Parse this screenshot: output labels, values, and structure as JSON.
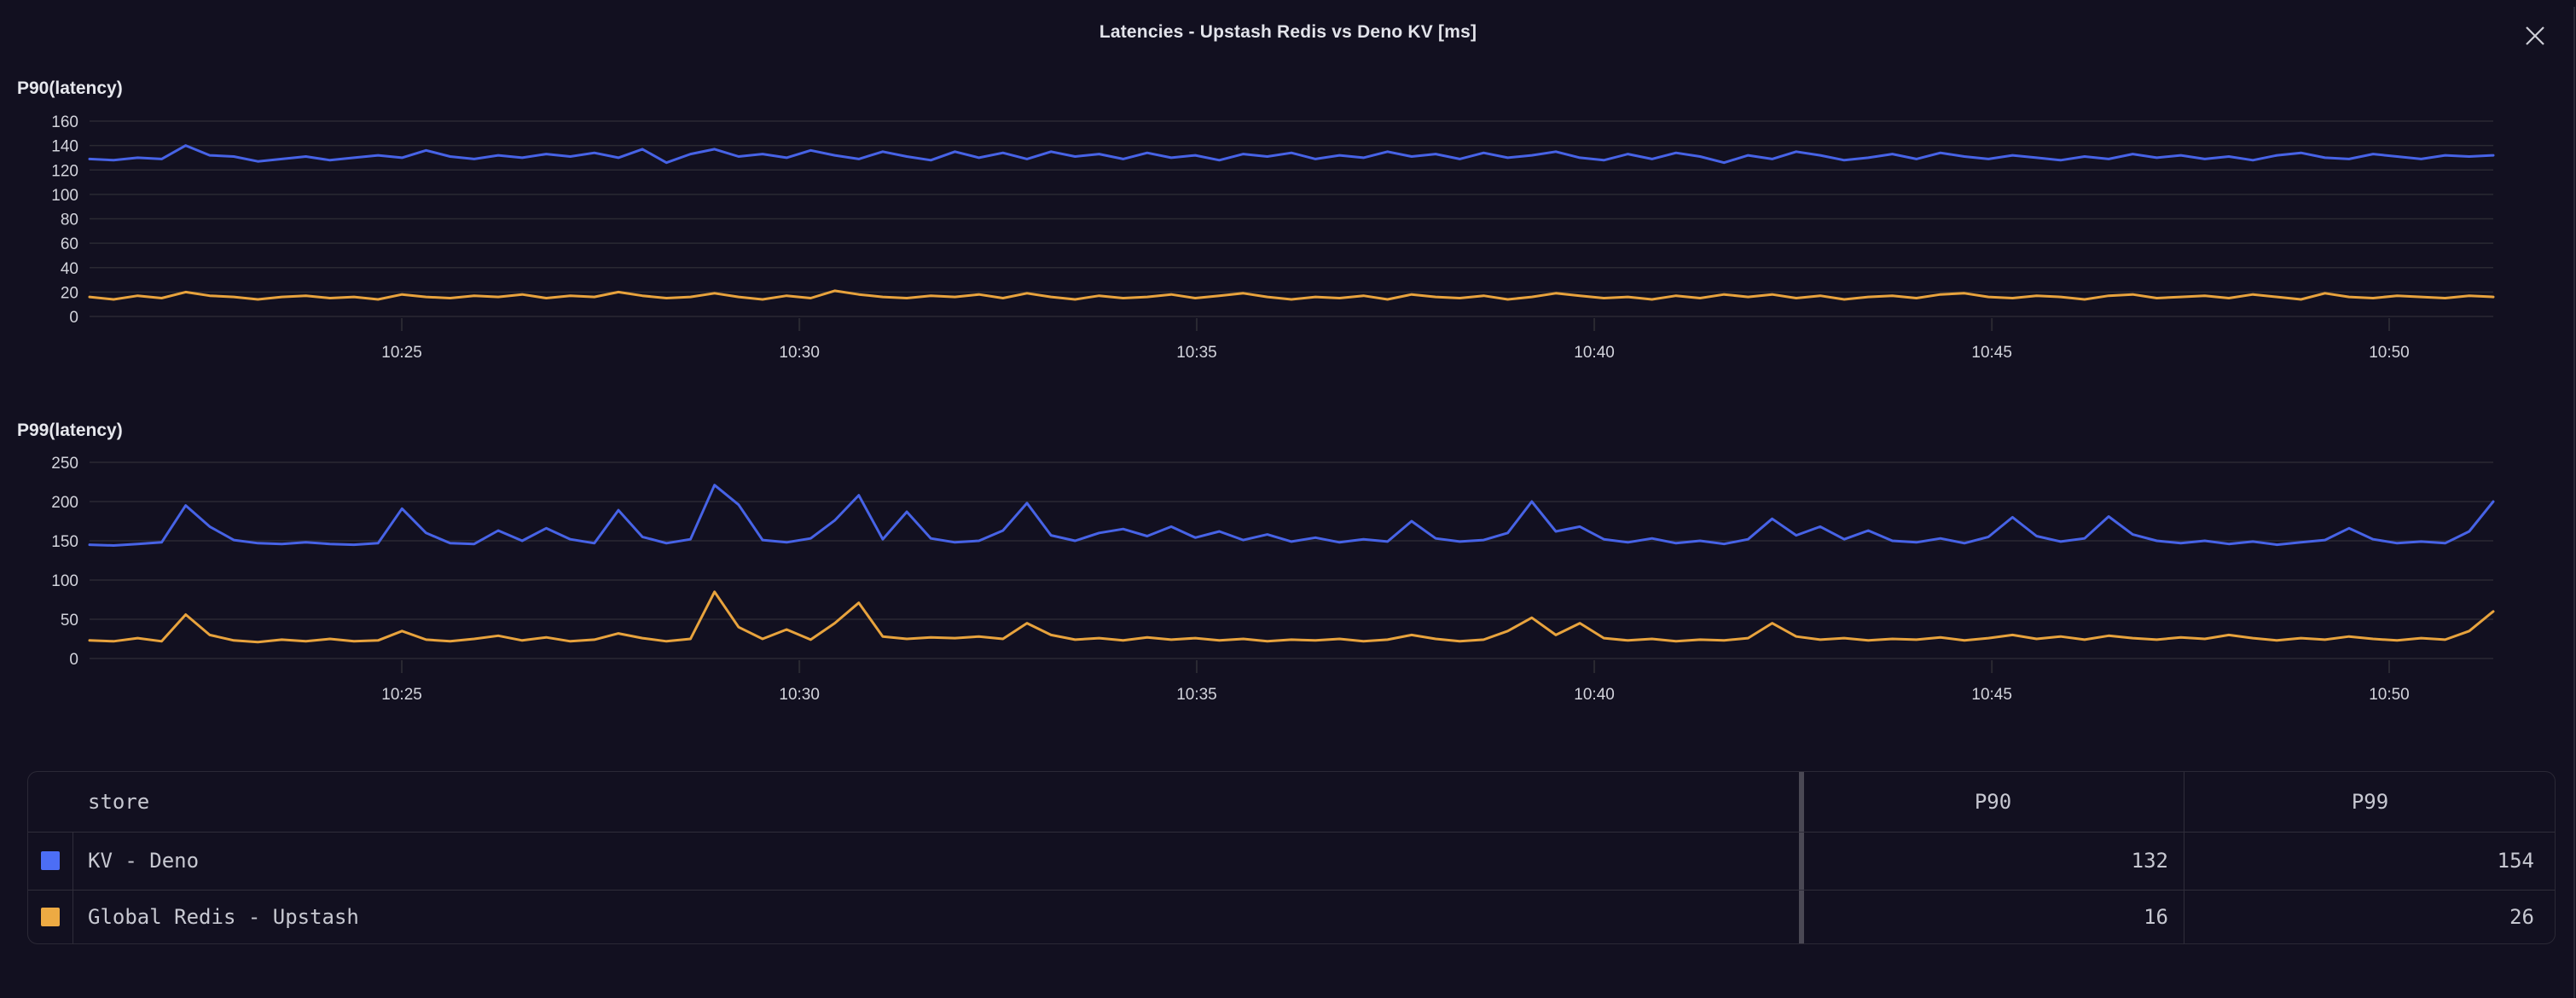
{
  "title": "Latencies - Upstash Redis vs Deno KV [ms]",
  "close_glyph": "✕",
  "colors": {
    "background": "#121020",
    "gridline": "#2a2932",
    "axis_text": "#d2d3db",
    "blue_line": "#4763e6",
    "orange_line": "#e8a33d",
    "blue_swatch": "#4c6ef5",
    "orange_swatch": "#edaa43"
  },
  "chart_data": [
    {
      "type": "line",
      "title": "P90(latency)",
      "ylabel": "",
      "xlabel": "",
      "grid": "horizontal",
      "legend_position": "none",
      "ylim": [
        0,
        160
      ],
      "y_ticks": [
        160,
        140,
        120,
        100,
        80,
        60,
        40,
        20,
        0
      ],
      "x_ticks": [
        {
          "label": "10:25",
          "f": 0.1299
        },
        {
          "label": "10:30",
          "f": 0.2953
        },
        {
          "label": "10:35",
          "f": 0.4606
        },
        {
          "label": "10:40",
          "f": 0.626
        },
        {
          "label": "10:45",
          "f": 0.7914
        },
        {
          "label": "10:50",
          "f": 0.9567
        }
      ],
      "series": [
        {
          "name": "KV - Deno",
          "color": "#4763e6",
          "values": [
            129,
            128,
            130,
            129,
            140,
            132,
            131,
            127,
            129,
            131,
            128,
            130,
            132,
            130,
            136,
            131,
            129,
            132,
            130,
            133,
            131,
            134,
            130,
            137,
            126,
            133,
            137,
            131,
            133,
            130,
            136,
            132,
            129,
            135,
            131,
            128,
            135,
            130,
            134,
            129,
            135,
            131,
            133,
            129,
            134,
            130,
            132,
            128,
            133,
            131,
            134,
            129,
            132,
            130,
            135,
            131,
            133,
            129,
            134,
            130,
            132,
            135,
            130,
            128,
            133,
            129,
            134,
            131,
            126,
            132,
            129,
            135,
            132,
            128,
            130,
            133,
            129,
            134,
            131,
            129,
            132,
            130,
            128,
            131,
            129,
            133,
            130,
            132,
            129,
            131,
            128,
            132,
            134,
            130,
            129,
            133,
            131,
            129,
            132,
            131,
            132
          ]
        },
        {
          "name": "Global Redis - Upstash",
          "color": "#e8a33d",
          "values": [
            16,
            14,
            17,
            15,
            20,
            17,
            16,
            14,
            16,
            17,
            15,
            16,
            14,
            18,
            16,
            15,
            17,
            16,
            18,
            15,
            17,
            16,
            20,
            17,
            15,
            16,
            19,
            16,
            14,
            17,
            15,
            21,
            18,
            16,
            15,
            17,
            16,
            18,
            15,
            19,
            16,
            14,
            17,
            15,
            16,
            18,
            15,
            17,
            19,
            16,
            14,
            16,
            15,
            17,
            14,
            18,
            16,
            15,
            17,
            14,
            16,
            19,
            17,
            15,
            16,
            14,
            17,
            15,
            18,
            16,
            18,
            15,
            17,
            14,
            16,
            17,
            15,
            18,
            19,
            16,
            15,
            17,
            16,
            14,
            17,
            18,
            15,
            16,
            17,
            15,
            18,
            16,
            14,
            19,
            16,
            15,
            17,
            16,
            15,
            17,
            16
          ]
        }
      ]
    },
    {
      "type": "line",
      "title": "P99(latency)",
      "ylabel": "",
      "xlabel": "",
      "grid": "horizontal",
      "legend_position": "none",
      "ylim": [
        0,
        250
      ],
      "y_ticks": [
        250,
        200,
        150,
        100,
        50,
        0
      ],
      "x_ticks": [
        {
          "label": "10:25",
          "f": 0.1299
        },
        {
          "label": "10:30",
          "f": 0.2953
        },
        {
          "label": "10:35",
          "f": 0.4606
        },
        {
          "label": "10:40",
          "f": 0.626
        },
        {
          "label": "10:45",
          "f": 0.7914
        },
        {
          "label": "10:50",
          "f": 0.9567
        }
      ],
      "series": [
        {
          "name": "KV - Deno",
          "color": "#4763e6",
          "values": [
            145,
            144,
            146,
            148,
            195,
            168,
            151,
            147,
            146,
            148,
            146,
            145,
            147,
            191,
            160,
            147,
            146,
            163,
            150,
            166,
            152,
            147,
            189,
            155,
            147,
            152,
            221,
            196,
            151,
            148,
            153,
            176,
            208,
            152,
            187,
            153,
            148,
            150,
            163,
            198,
            157,
            150,
            160,
            165,
            156,
            168,
            154,
            162,
            151,
            158,
            149,
            154,
            148,
            152,
            149,
            175,
            153,
            149,
            151,
            160,
            200,
            162,
            168,
            152,
            148,
            153,
            147,
            150,
            146,
            152,
            178,
            157,
            168,
            152,
            163,
            150,
            148,
            153,
            147,
            155,
            180,
            156,
            149,
            153,
            181,
            158,
            150,
            147,
            150,
            146,
            149,
            145,
            148,
            151,
            166,
            152,
            147,
            149,
            147,
            162,
            200
          ]
        },
        {
          "name": "Global Redis - Upstash",
          "color": "#e8a33d",
          "values": [
            23,
            22,
            26,
            22,
            56,
            30,
            23,
            21,
            24,
            22,
            25,
            22,
            23,
            35,
            24,
            22,
            25,
            29,
            23,
            27,
            22,
            24,
            32,
            26,
            22,
            25,
            85,
            40,
            25,
            37,
            24,
            45,
            71,
            28,
            25,
            27,
            26,
            28,
            25,
            45,
            30,
            24,
            26,
            23,
            27,
            24,
            26,
            23,
            25,
            22,
            24,
            23,
            25,
            22,
            24,
            30,
            25,
            22,
            24,
            35,
            52,
            30,
            45,
            26,
            23,
            25,
            22,
            24,
            23,
            26,
            45,
            28,
            24,
            26,
            23,
            25,
            24,
            27,
            23,
            26,
            30,
            25,
            28,
            24,
            29,
            26,
            24,
            27,
            25,
            30,
            26,
            23,
            26,
            24,
            28,
            25,
            23,
            26,
            24,
            35,
            60
          ]
        }
      ]
    }
  ],
  "table": {
    "columns": [
      "store",
      "P90",
      "P99"
    ],
    "rows": [
      {
        "swatch": "#4c6ef5",
        "store": "KV - Deno",
        "p90": "132",
        "p99": "154"
      },
      {
        "swatch": "#edaa43",
        "store": "Global Redis - Upstash",
        "p90": "16",
        "p99": "26"
      }
    ]
  }
}
